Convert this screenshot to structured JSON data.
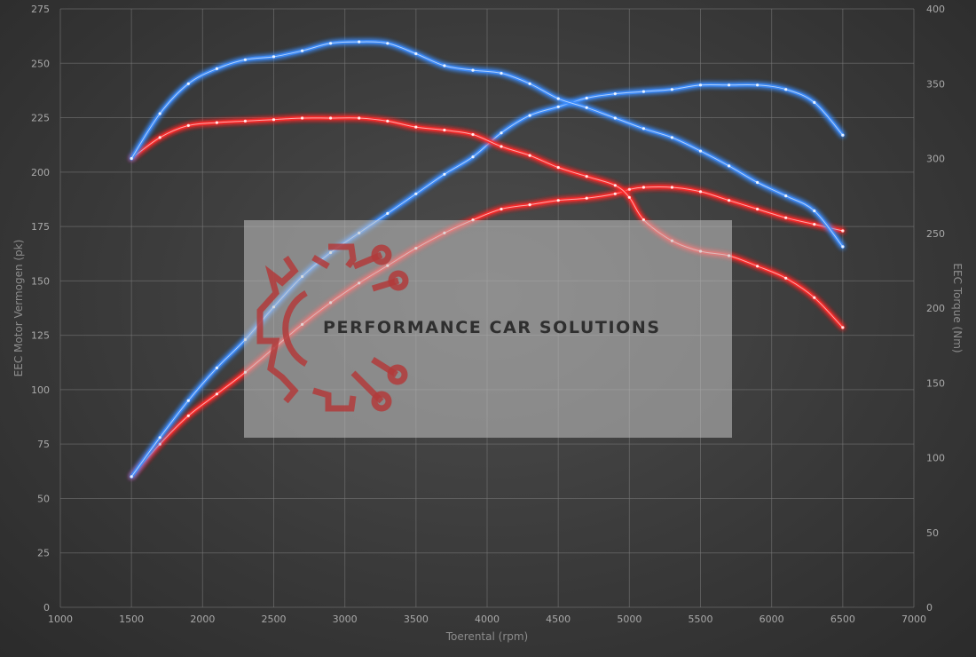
{
  "chart_data": {
    "type": "line",
    "xlabel": "Toerental (rpm)",
    "ylabel_left": "EEC Motor Vermogen (pk)",
    "ylabel_right": "EEC Torque (Nm)",
    "xlim": [
      1000,
      7000
    ],
    "ylim_left": [
      0,
      275
    ],
    "ylim_right": [
      0,
      400
    ],
    "x_ticks": [
      1000,
      1500,
      2000,
      2500,
      3000,
      3500,
      4000,
      4500,
      5000,
      5500,
      6000,
      6500,
      7000
    ],
    "y_left_ticks": [
      0,
      25,
      50,
      75,
      100,
      125,
      150,
      175,
      200,
      225,
      250,
      275
    ],
    "y_right_ticks": [
      0,
      50,
      100,
      150,
      200,
      250,
      300,
      350,
      400
    ],
    "grid": true,
    "series": [
      {
        "axis": "left",
        "color": "#ff2a2a",
        "x": [
          1500,
          1700,
          1900,
          2100,
          2300,
          2500,
          2700,
          2900,
          3100,
          3300,
          3500,
          3700,
          3900,
          4100,
          4300,
          4500,
          4700,
          4900,
          5000,
          5100,
          5300,
          5500,
          5700,
          5900,
          6100,
          6300,
          6500
        ],
        "values": [
          60,
          75,
          88,
          98,
          108,
          119,
          130,
          140,
          149,
          157,
          165,
          172,
          178,
          183,
          185,
          187,
          188,
          190,
          192,
          193,
          193,
          191,
          187,
          183,
          179,
          176,
          173
        ]
      },
      {
        "axis": "left",
        "color": "#3d8eff",
        "x": [
          1500,
          1700,
          1900,
          2100,
          2300,
          2500,
          2700,
          2900,
          3100,
          3300,
          3500,
          3700,
          3900,
          4100,
          4300,
          4500,
          4700,
          4900,
          5100,
          5300,
          5500,
          5700,
          5900,
          6100,
          6300,
          6500
        ],
        "values": [
          60,
          78,
          95,
          110,
          123,
          138,
          152,
          163,
          172,
          181,
          190,
          199,
          207,
          218,
          226,
          230,
          234,
          236,
          237,
          238,
          240,
          240,
          240,
          238,
          232,
          217
        ]
      },
      {
        "axis": "right",
        "color": "#ff2a2a",
        "x": [
          1500,
          1700,
          1900,
          2100,
          2300,
          2500,
          2700,
          2900,
          3100,
          3300,
          3500,
          3700,
          3900,
          4100,
          4300,
          4500,
          4700,
          4900,
          5000,
          5100,
          5300,
          5500,
          5700,
          5900,
          6100,
          6300,
          6500
        ],
        "values": [
          300,
          314,
          322,
          324,
          325,
          326,
          327,
          327,
          327,
          325,
          321,
          319,
          316,
          308,
          302,
          294,
          288,
          282,
          274,
          259,
          245,
          238,
          235,
          228,
          220,
          207,
          187
        ]
      },
      {
        "axis": "right",
        "color": "#3d8eff",
        "x": [
          1500,
          1700,
          1900,
          2100,
          2300,
          2500,
          2700,
          2900,
          3100,
          3300,
          3500,
          3700,
          3900,
          4100,
          4300,
          4500,
          4700,
          4900,
          5100,
          5300,
          5500,
          5700,
          5900,
          6100,
          6300,
          6500
        ],
        "values": [
          300,
          330,
          350,
          360,
          366,
          368,
          372,
          377,
          378,
          377,
          370,
          362,
          359,
          357,
          350,
          340,
          334,
          327,
          320,
          314,
          305,
          295,
          284,
          275,
          265,
          241
        ]
      }
    ]
  },
  "watermark": {
    "text": "PERFORMANCE CAR SOLUTIONS",
    "logo_color": "#b23b3b"
  }
}
